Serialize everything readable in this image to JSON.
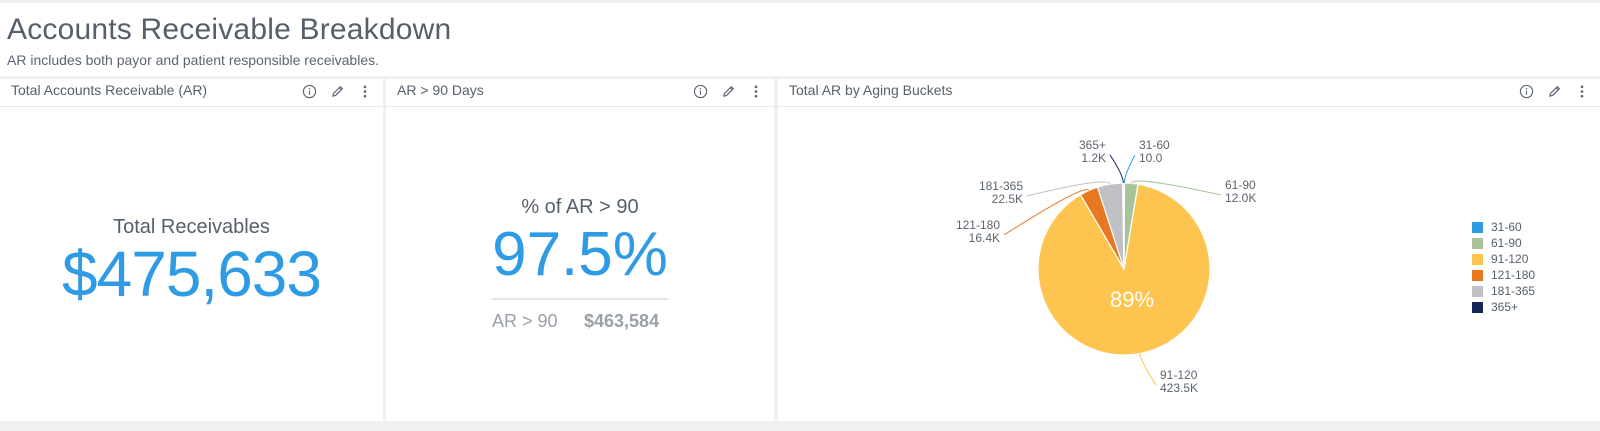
{
  "page": {
    "title": "Accounts Receivable Breakdown",
    "subtitle": "AR includes both payor and patient responsible receivables."
  },
  "panels": [
    {
      "title": "Total Accounts Receivable (AR)"
    },
    {
      "title": "AR > 90 Days"
    },
    {
      "title": "Total AR by Aging Buckets"
    }
  ],
  "icons": [
    "info-icon",
    "pencil-icon",
    "more-vertical-icon"
  ],
  "kpi_total": {
    "label": "Total Receivables",
    "value": "$475,633"
  },
  "kpi_ar90": {
    "label": "% of AR > 90",
    "value": "97.5%",
    "sub_label": "AR > 90",
    "sub_value": "$463,584"
  },
  "colors": {
    "accent": "#2f9be5",
    "bucket_31_60": "#2f9be5",
    "bucket_61_90": "#a6c39a",
    "bucket_91_120": "#fdc54f",
    "bucket_121_180": "#e87722",
    "bucket_181_365": "#bfc1c6",
    "bucket_365_plus": "#13275a"
  },
  "chart_data": {
    "type": "pie",
    "title": "Total AR by Aging Buckets",
    "center_label": "89%",
    "slices": [
      {
        "name": "31-60",
        "value": 10.0,
        "label_lines": [
          "31-60",
          "10.0"
        ],
        "color": "#2f9be5"
      },
      {
        "name": "61-90",
        "value": 12000,
        "label_lines": [
          "61-90",
          "12.0K"
        ],
        "color": "#a6c39a"
      },
      {
        "name": "91-120",
        "value": 423500,
        "label_lines": [
          "91-120",
          "423.5K"
        ],
        "color": "#fdc54f"
      },
      {
        "name": "121-180",
        "value": 16400,
        "label_lines": [
          "121-180",
          "16.4K"
        ],
        "color": "#e87722"
      },
      {
        "name": "181-365",
        "value": 22500,
        "label_lines": [
          "181-365",
          "22.5K"
        ],
        "color": "#bfc1c6"
      },
      {
        "name": "365+",
        "value": 1200,
        "label_lines": [
          "365+",
          "1.2K"
        ],
        "color": "#13275a"
      }
    ],
    "legend": [
      "31-60",
      "61-90",
      "91-120",
      "121-180",
      "181-365",
      "365+"
    ],
    "legend_position": "right"
  }
}
